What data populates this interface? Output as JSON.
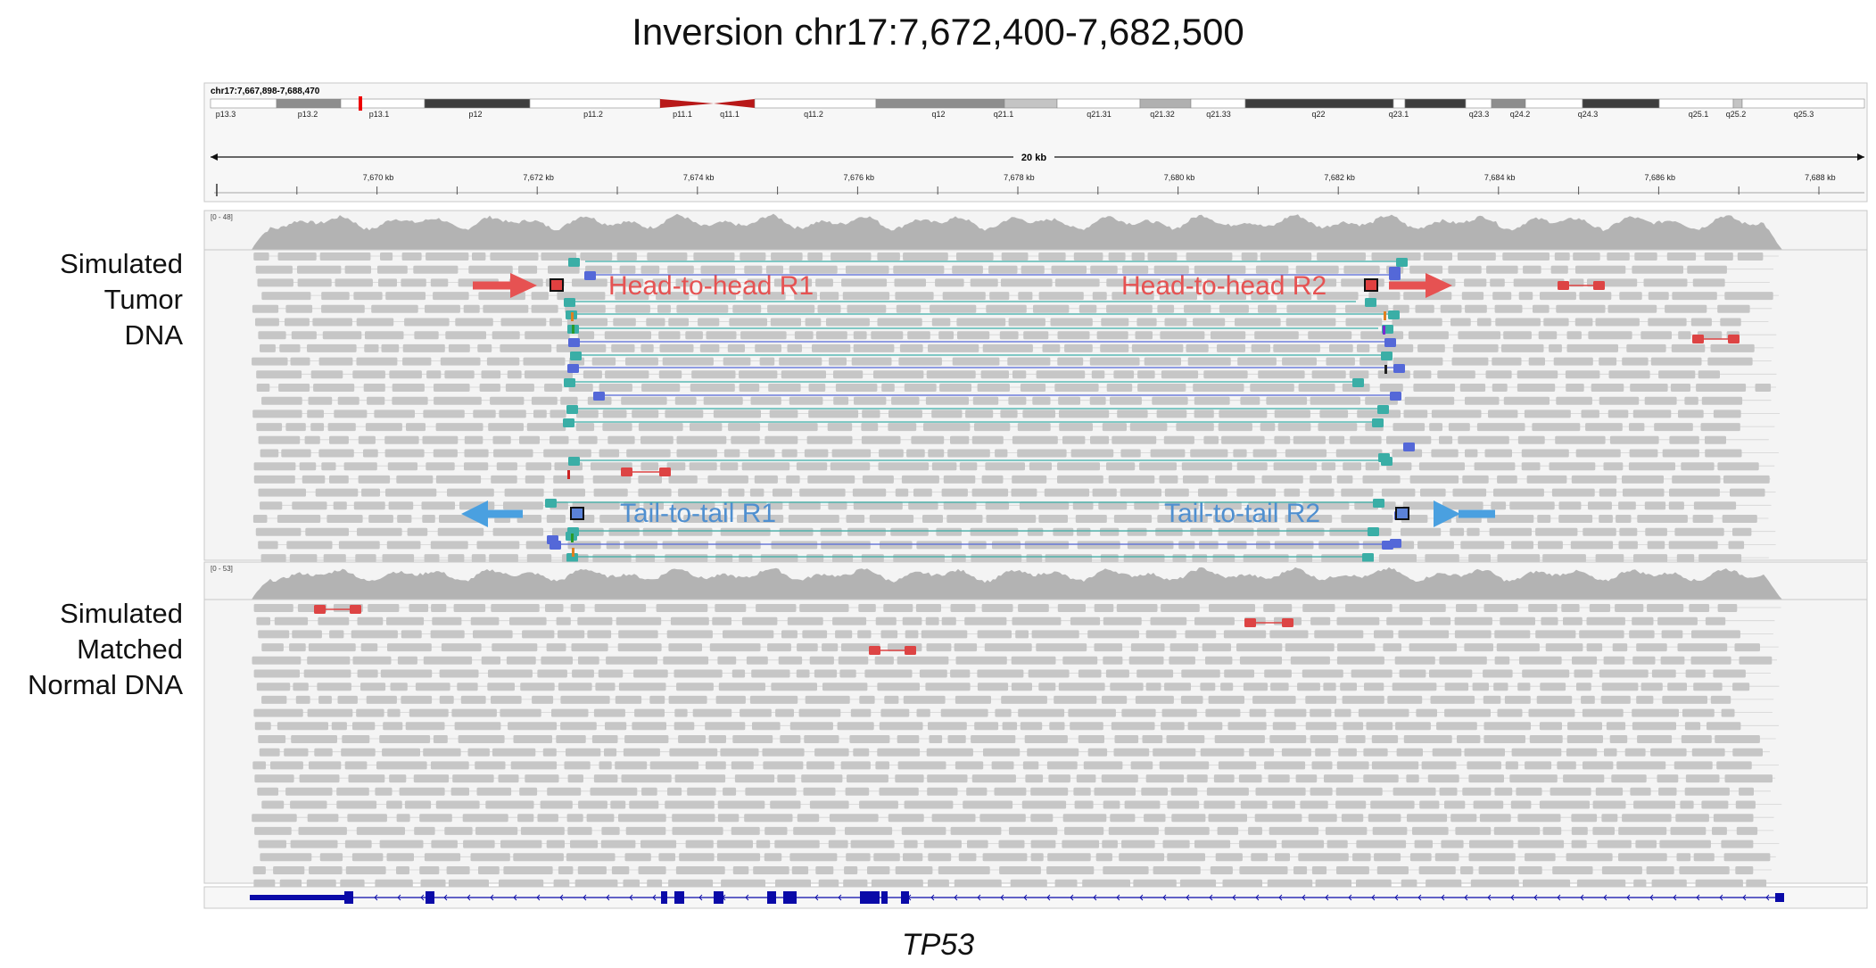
{
  "title": "Inversion chr17:7,672,400-7,682,500",
  "gene": "TP53",
  "locus": "chr17:7,667,898-7,688,470",
  "scale_label": "20 kb",
  "ruler_ticks": [
    "7,670 kb",
    "7,672 kb",
    "7,674 kb",
    "7,676 kb",
    "7,678 kb",
    "7,680 kb",
    "7,682 kb",
    "7,684 kb",
    "7,686 kb",
    "7,688 kb"
  ],
  "cytobands": [
    "p13.3",
    "p13.2",
    "p13.1",
    "p12",
    "p11.2",
    "p11.1",
    "q11.1",
    "q11.2",
    "q12",
    "q21.1",
    "q21.31",
    "q21.32",
    "q21.33",
    "q22",
    "q23.1",
    "q23.3",
    "q24.2",
    "q24.3",
    "q25.1",
    "q25.2",
    "q25.3"
  ],
  "tracks": {
    "tumor": {
      "label_lines": [
        "Simulated",
        "Tumor",
        "DNA"
      ],
      "coverage_range": "[0 - 48]"
    },
    "normal": {
      "label_lines": [
        "Simulated",
        "Matched",
        "Normal DNA"
      ],
      "coverage_range": "[0 - 53]"
    }
  },
  "annotations": {
    "hh_r1": "Head-to-head R1",
    "hh_r2": "Head-to-head R2",
    "tt_r1": "Tail-to-tail R1",
    "tt_r2": "Tail-to-tail R2"
  },
  "colors": {
    "read": "#c6c6c6",
    "coverage": "#b3b3b3",
    "pair_teal": "#3aaea6",
    "pair_blue": "#5468d8",
    "discordant_red": "#dd4444",
    "annot_red": "#e65252",
    "annot_blue": "#4aa0e0",
    "gene_blue": "#0a0aa8"
  }
}
